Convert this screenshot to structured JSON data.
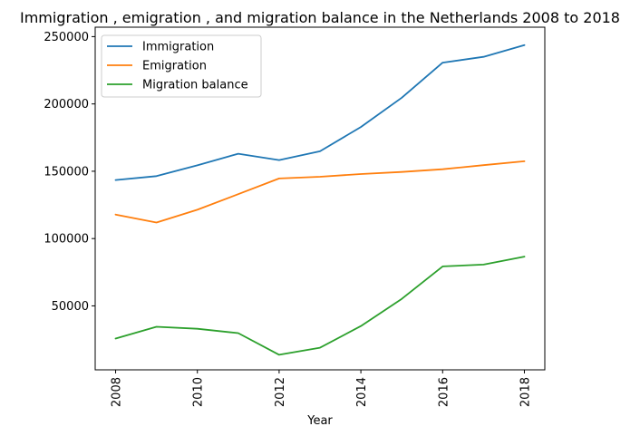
{
  "chart_data": {
    "type": "line",
    "title": "Immigration , emigration , and migration balance in the Netherlands 2008 to 2018",
    "xlabel": "Year",
    "ylabel": "",
    "x": [
      2008,
      2009,
      2010,
      2011,
      2012,
      2013,
      2014,
      2015,
      2016,
      2017,
      2018
    ],
    "xticks": [
      "2008",
      "2010",
      "2012",
      "2014",
      "2016",
      "2018"
    ],
    "xlim": [
      2007.5,
      2018.5
    ],
    "ylim": [
      2500,
      257000
    ],
    "yticks": [
      "50000",
      "100000",
      "150000",
      "200000",
      "250000"
    ],
    "grid": false,
    "legend_position": "top-left",
    "series": [
      {
        "name": "Immigration",
        "color": "#1f77b4",
        "values": [
          143500,
          146400,
          154400,
          163000,
          158300,
          164800,
          182900,
          204600,
          230700,
          235000,
          243700
        ]
      },
      {
        "name": "Emigration",
        "color": "#ff7f0e",
        "values": [
          117800,
          111900,
          121400,
          133000,
          144600,
          145900,
          147900,
          149500,
          151500,
          154500,
          157400
        ]
      },
      {
        "name": "Migration balance",
        "color": "#2ca02c",
        "values": [
          25700,
          34500,
          33000,
          29800,
          13700,
          18900,
          35000,
          55200,
          79300,
          80700,
          86600
        ]
      }
    ]
  }
}
